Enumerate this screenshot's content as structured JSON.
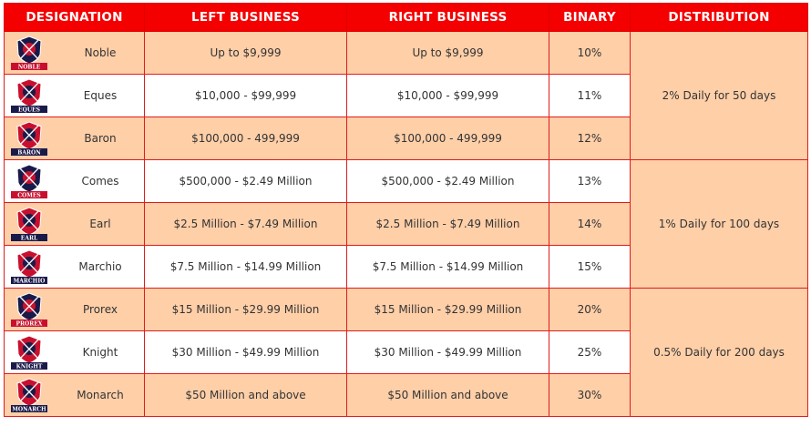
{
  "headers": [
    "DESIGNATION",
    "LEFT BUSINESS",
    "RIGHT BUSINESS",
    "BINARY",
    "DISTRIBUTION"
  ],
  "rows": [
    {
      "name": "Noble",
      "badge": "NOBLE",
      "left": "Up to $9,999",
      "right": "Up to $9,999",
      "binary": "10%",
      "icon": "noble-badge-icon"
    },
    {
      "name": "Eques",
      "badge": "EQUES",
      "left": "$10,000 - $99,999",
      "right": "$10,000 - $99,999",
      "binary": "11%",
      "icon": "eques-badge-icon"
    },
    {
      "name": "Baron",
      "badge": "BARON",
      "left": "$100,000 - 499,999",
      "right": "$100,000 - 499,999",
      "binary": "12%",
      "icon": "baron-badge-icon"
    },
    {
      "name": "Comes",
      "badge": "COMES",
      "left": "$500,000 - $2.49 Million",
      "right": "$500,000 - $2.49 Million",
      "binary": "13%",
      "icon": "comes-badge-icon"
    },
    {
      "name": "Earl",
      "badge": "EARL",
      "left": "$2.5 Million - $7.49 Million",
      "right": "$2.5 Million - $7.49 Million",
      "binary": "14%",
      "icon": "earl-badge-icon"
    },
    {
      "name": "Marchio",
      "badge": "MARCHIO",
      "left": "$7.5 Million - $14.99 Million",
      "right": "$7.5 Million - $14.99 Million",
      "binary": "15%",
      "icon": "marchio-badge-icon"
    },
    {
      "name": "Prorex",
      "badge": "PROREX",
      "left": "$15 Million - $29.99 Million",
      "right": "$15 Million - $29.99 Million",
      "binary": "20%",
      "icon": "prorex-badge-icon"
    },
    {
      "name": "Knight",
      "badge": "KNIGHT",
      "left": "$30 Million - $49.99 Million",
      "right": "$30 Million - $49.99 Million",
      "binary": "25%",
      "icon": "knight-badge-icon"
    },
    {
      "name": "Monarch",
      "badge": "MONARCH",
      "left": "$50 Million and above",
      "right": "$50 Million and above",
      "binary": "30%",
      "icon": "monarch-badge-icon"
    }
  ],
  "distribution": [
    {
      "text": "2% Daily for 50 days",
      "rows": 3
    },
    {
      "text": "1% Daily for 100 days",
      "rows": 3
    },
    {
      "text": "0.5% Daily for 200 days",
      "rows": 3
    }
  ],
  "colors": {
    "header": "#f40000",
    "odd_row": "#ffcfa8",
    "even_row": "#ffffff",
    "badge_red": "#c8102e",
    "badge_navy": "#1a1a4a"
  }
}
